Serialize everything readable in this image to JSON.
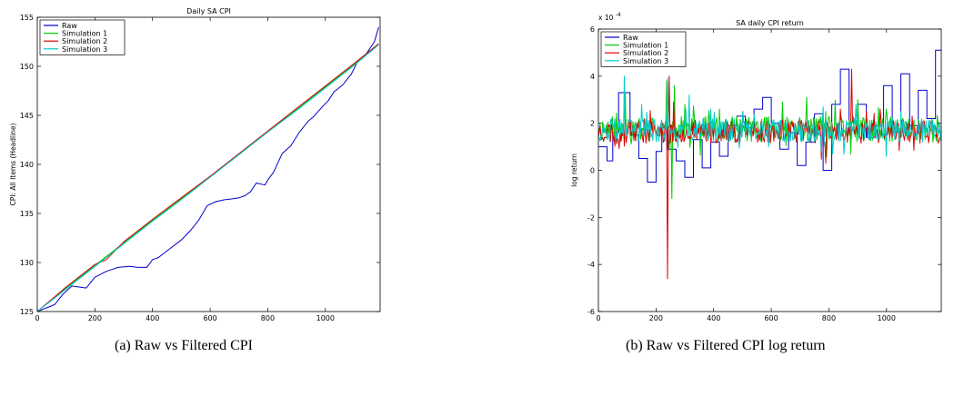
{
  "captions": {
    "a": "(a)  Raw vs Filtered CPI",
    "b": "(b)  Raw vs Filtered CPI log return"
  },
  "chart_data": [
    {
      "type": "line",
      "title": "Daily SA CPI",
      "xlabel": "",
      "ylabel": "CPI: All Items (Headline)",
      "xlim": [
        0,
        1190
      ],
      "ylim": [
        125,
        155
      ],
      "xticks": [
        0,
        200,
        400,
        600,
        800,
        1000
      ],
      "yticks": [
        125,
        130,
        135,
        140,
        145,
        150,
        155
      ],
      "grid": false,
      "legend": "top-left",
      "series": [
        {
          "name": "Raw",
          "color": "#0000cc",
          "x": [
            0,
            60,
            90,
            120,
            170,
            200,
            240,
            280,
            320,
            350,
            380,
            400,
            420,
            460,
            500,
            530,
            560,
            590,
            620,
            650,
            680,
            700,
            720,
            740,
            760,
            790,
            800,
            820,
            850,
            880,
            910,
            940,
            960,
            990,
            1010,
            1030,
            1060,
            1090,
            1110,
            1140,
            1170,
            1185
          ],
          "y": [
            125,
            125.7,
            126.8,
            127.6,
            127.4,
            128.5,
            129.1,
            129.5,
            129.6,
            129.5,
            129.5,
            130.3,
            130.5,
            131.4,
            132.3,
            133.2,
            134.3,
            135.8,
            136.2,
            136.4,
            136.5,
            136.6,
            136.8,
            137.2,
            138.1,
            137.9,
            138.4,
            139.2,
            141.1,
            141.9,
            143.3,
            144.4,
            144.9,
            145.9,
            146.5,
            147.4,
            148.1,
            149.2,
            150.4,
            151.2,
            152.5,
            154
          ]
        },
        {
          "name": "Simulation 1",
          "color": "#00cc00",
          "x": [
            0,
            100,
            200,
            300,
            400,
            500,
            600,
            700,
            800,
            900,
            1000,
            1100,
            1185
          ],
          "y": [
            125,
            127.4,
            129.7,
            132,
            134.3,
            136.5,
            138.7,
            141,
            143.3,
            145.6,
            147.9,
            150.2,
            152.3
          ]
        },
        {
          "name": "Simulation 2",
          "color": "#dd0000",
          "x": [
            0,
            100,
            200,
            240,
            300,
            400,
            500,
            600,
            700,
            800,
            900,
            1000,
            1100,
            1185
          ],
          "y": [
            125,
            127.5,
            129.8,
            130.3,
            132.1,
            134.4,
            136.6,
            138.8,
            141.1,
            143.4,
            145.7,
            148,
            150.3,
            152.3
          ]
        },
        {
          "name": "Simulation 3",
          "color": "#00cccc",
          "x": [
            0,
            100,
            200,
            300,
            400,
            500,
            600,
            700,
            800,
            900,
            1000,
            1100,
            1185
          ],
          "y": [
            125,
            127.3,
            129.6,
            131.9,
            134.2,
            136.4,
            138.7,
            141,
            143.3,
            145.5,
            147.8,
            150.1,
            152.2
          ]
        }
      ]
    },
    {
      "type": "line",
      "title": "SA daily CPI return",
      "xlabel": "",
      "ylabel": "log return",
      "y_multiplier": "x 10",
      "y_exponent": "-4",
      "xlim": [
        0,
        1190
      ],
      "ylim": [
        -6,
        6
      ],
      "xticks": [
        0,
        200,
        400,
        600,
        800,
        1000
      ],
      "yticks": [
        -6,
        -4,
        -2,
        0,
        2,
        4,
        6
      ],
      "grid": false,
      "legend": "top-left",
      "series": [
        {
          "name": "Raw",
          "color": "#0000cc",
          "step": true,
          "x": [
            0,
            30,
            50,
            70,
            110,
            140,
            170,
            200,
            220,
            240,
            270,
            300,
            330,
            360,
            390,
            420,
            450,
            480,
            510,
            540,
            570,
            600,
            630,
            660,
            690,
            720,
            750,
            780,
            810,
            840,
            870,
            900,
            930,
            960,
            990,
            1020,
            1050,
            1080,
            1110,
            1140,
            1170,
            1190
          ],
          "y": [
            1.0,
            0.4,
            1.6,
            3.3,
            1.5,
            0.5,
            -0.5,
            0.8,
            1.8,
            0.9,
            0.4,
            -0.3,
            1.3,
            0.1,
            1.2,
            0.6,
            1.9,
            2.3,
            1.8,
            2.6,
            3.1,
            2.0,
            0.9,
            1.6,
            0.2,
            1.2,
            2.4,
            0.0,
            2.8,
            4.3,
            1.7,
            2.8,
            1.4,
            1.9,
            3.6,
            1.6,
            4.1,
            1.9,
            3.4,
            2.2,
            5.1,
            5.1
          ]
        },
        {
          "name": "Simulation 1",
          "color": "#00cc00",
          "mean": 1.75,
          "amp": 0.55,
          "seed": 11,
          "spikes": [
            [
              93,
              3.3
            ],
            [
              238,
              3.8
            ],
            [
              255,
              -1.2
            ],
            [
              265,
              3.6
            ],
            [
              300,
              2.8
            ],
            [
              420,
              2.6
            ],
            [
              640,
              2.9
            ],
            [
              790,
              2.5
            ],
            [
              900,
              3.0
            ],
            [
              1000,
              2.6
            ]
          ]
        },
        {
          "name": "Simulation 2",
          "color": "#dd0000",
          "mean": 1.65,
          "amp": 0.5,
          "seed": 23,
          "spikes": [
            [
              240,
              -4.6
            ],
            [
              245,
              4.0
            ],
            [
              500,
              2.5
            ],
            [
              790,
              0.3
            ],
            [
              840,
              2.6
            ],
            [
              880,
              4.3
            ],
            [
              930,
              2.5
            ],
            [
              1090,
              2.3
            ]
          ]
        },
        {
          "name": "Simulation 3",
          "color": "#00cccc",
          "mean": 1.7,
          "amp": 0.5,
          "seed": 37,
          "spikes": [
            [
              90,
              4.0
            ],
            [
              150,
              2.8
            ],
            [
              240,
              3.9
            ],
            [
              315,
              3.2
            ],
            [
              390,
              2.6
            ],
            [
              500,
              2.5
            ],
            [
              780,
              2.7
            ],
            [
              1000,
              0.6
            ],
            [
              1050,
              2.5
            ]
          ]
        }
      ]
    }
  ]
}
